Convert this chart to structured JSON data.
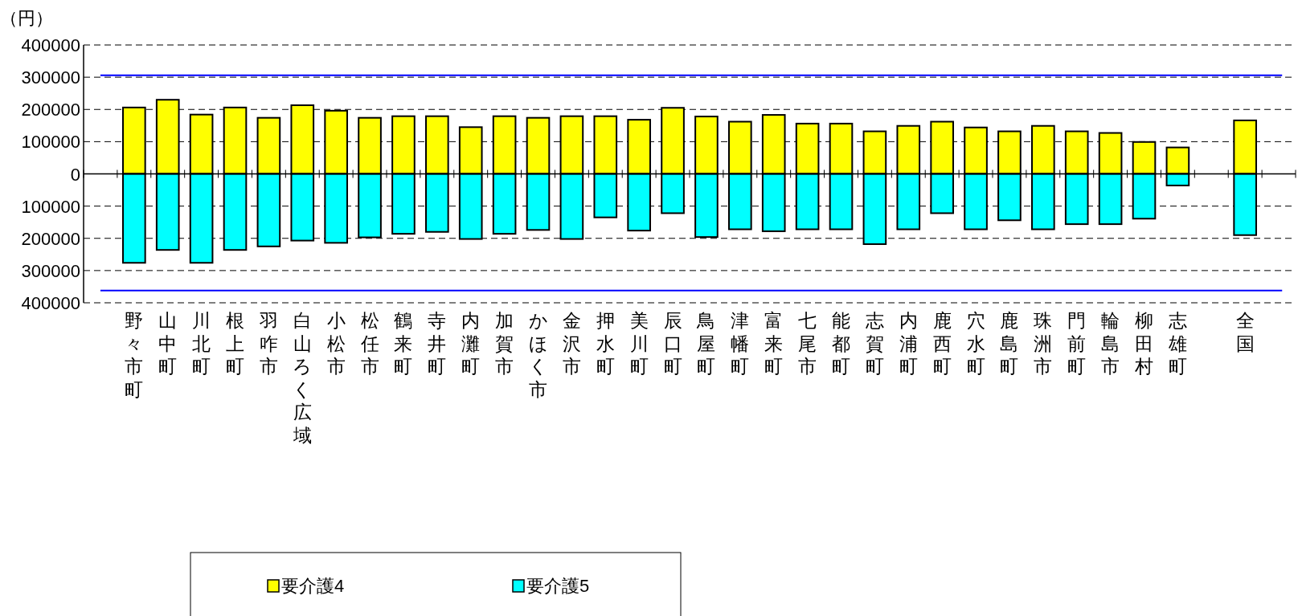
{
  "chart_data": {
    "type": "bar",
    "stacked": true,
    "ylabel": "（円）",
    "categories": [
      null,
      "野々市町",
      "山中町",
      "川北町",
      "根上町",
      "羽咋市",
      "白山ろく広域",
      "小松市",
      "松任市",
      "鶴来町",
      "寺井町",
      "内灘町",
      "加賀市",
      "かほく市",
      "金沢市",
      "押水町",
      "美川町",
      "辰口町",
      "鳥屋町",
      "津幡町",
      "富来町",
      "七尾市",
      "能都町",
      "志賀町",
      "内浦町",
      "鹿西町",
      "穴水町",
      "鹿島町",
      "珠洲市",
      "門前町",
      "輪島市",
      "柳田村",
      "志雄町",
      null,
      "全国",
      null
    ],
    "series": [
      {
        "name": "要介護4",
        "color": "#ffff00",
        "values": [
          null,
          206000,
          230000,
          184000,
          206000,
          174000,
          213000,
          196000,
          174000,
          179000,
          179000,
          145000,
          179000,
          174000,
          179000,
          179000,
          168000,
          205000,
          178000,
          162000,
          183000,
          156000,
          156000,
          132000,
          149000,
          162000,
          144000,
          132000,
          149000,
          132000,
          127000,
          99000,
          82000,
          null,
          166000,
          null
        ]
      },
      {
        "name": "要介護5",
        "color": "#00ffff",
        "values": [
          null,
          -276000,
          -236000,
          -276000,
          -236000,
          -225000,
          -207000,
          -214000,
          -197000,
          -186000,
          -180000,
          -202000,
          -186000,
          -174000,
          -202000,
          -135000,
          -176000,
          -122000,
          -196000,
          -172000,
          -178000,
          -172000,
          -172000,
          -218000,
          -172000,
          -122000,
          -172000,
          -144000,
          -172000,
          -156000,
          -156000,
          -139000,
          -36000,
          null,
          -190000,
          null
        ]
      }
    ],
    "ylim": [
      -400000,
      400000
    ],
    "yticks": [
      {
        "value": -400000,
        "label": "400000"
      },
      {
        "value": -300000,
        "label": "300000"
      },
      {
        "value": -200000,
        "label": "200000"
      },
      {
        "value": -100000,
        "label": "100000"
      },
      0,
      100000,
      200000,
      300000,
      400000
    ],
    "ref_lines": [
      {
        "axis": "y",
        "value": 306000,
        "color": "#0000ff"
      },
      {
        "axis": "y",
        "value": -362000,
        "color": "#0000ff"
      }
    ],
    "grid": "y",
    "legend": "bottom"
  }
}
